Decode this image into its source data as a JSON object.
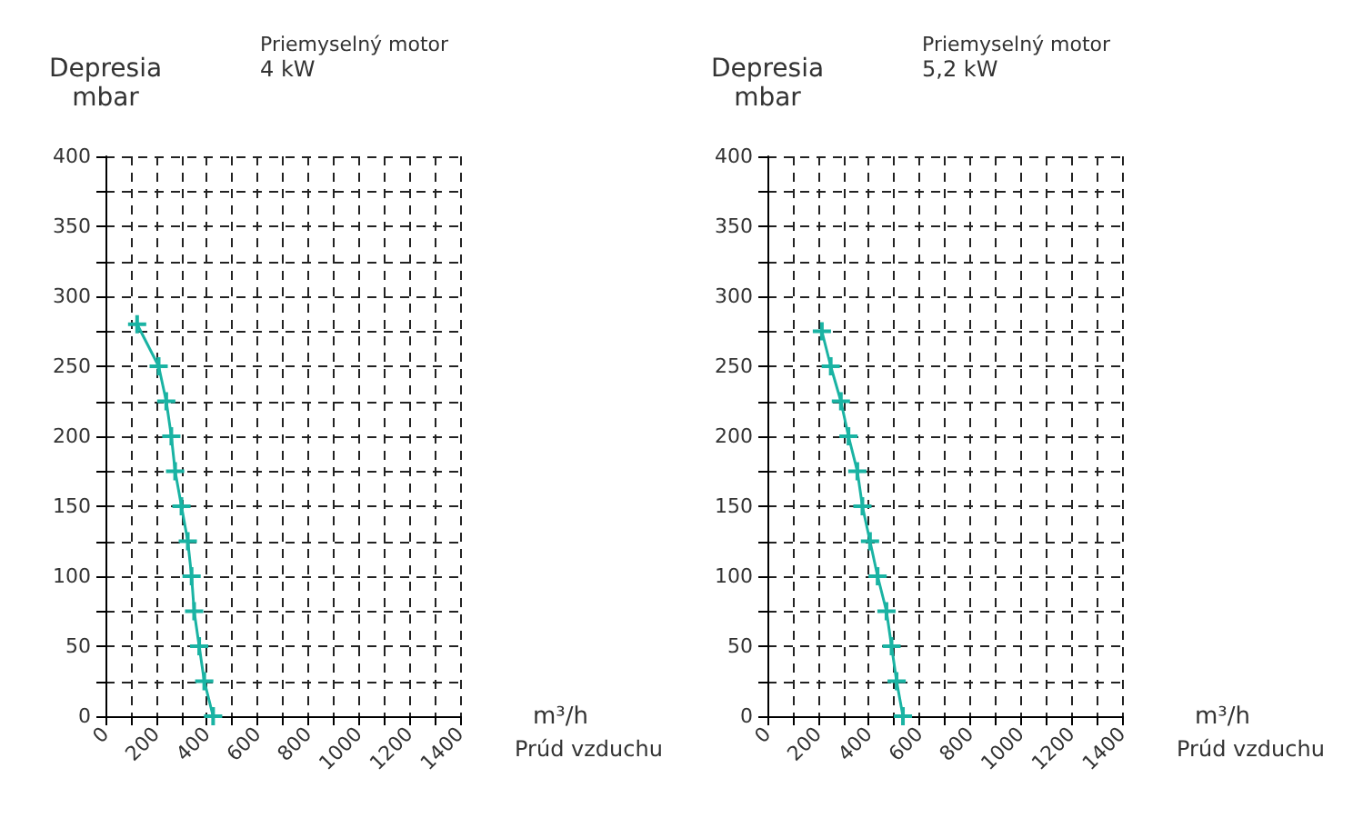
{
  "chart_data": [
    {
      "type": "line",
      "title": "Priemyselný motor",
      "subtitle": "4 kW",
      "ylabel": "Depresia\nmbar",
      "xlabel": "m³/h",
      "annotations": [
        "Prúd vzduchu"
      ],
      "marker": "cross",
      "grid": true,
      "xlim": [
        0,
        1400
      ],
      "xticks": [
        0,
        {
          "value": 100,
          "label": null
        },
        200,
        {
          "value": 300,
          "label": null
        },
        400,
        {
          "value": 500,
          "label": null
        },
        600,
        {
          "value": 700,
          "label": null
        },
        800,
        {
          "value": 900,
          "label": null
        },
        1000,
        {
          "value": 1100,
          "label": null
        },
        1200,
        {
          "value": 1300,
          "label": null
        },
        1400
      ],
      "ylim": [
        0,
        400
      ],
      "yticks": [
        0,
        {
          "value": 25,
          "label": null
        },
        50,
        {
          "value": 75,
          "label": null
        },
        100,
        {
          "value": 125,
          "label": null
        },
        150,
        {
          "value": 175,
          "label": null
        },
        200,
        {
          "value": 225,
          "label": null
        },
        250,
        {
          "value": 275,
          "label": null
        },
        300,
        {
          "value": 325,
          "label": null
        },
        350,
        {
          "value": 375,
          "label": null
        },
        400
      ],
      "series": [
        {
          "color": "#1ab3a3",
          "x": [
            125,
            210,
            240,
            260,
            275,
            300,
            325,
            340,
            350,
            370,
            390,
            425
          ],
          "values": [
            280,
            250,
            225,
            200,
            175,
            150,
            125,
            100,
            75,
            50,
            25,
            0
          ]
        }
      ]
    },
    {
      "type": "line",
      "title": "Priemyselný motor",
      "subtitle": "5,2 kW",
      "ylabel": "Depresia\nmbar",
      "xlabel": "m³/h",
      "annotations": [
        "Prúd vzduchu"
      ],
      "marker": "cross",
      "grid": true,
      "xlim": [
        0,
        1400
      ],
      "xticks": [
        0,
        {
          "value": 100,
          "label": null
        },
        200,
        {
          "value": 300,
          "label": null
        },
        400,
        {
          "value": 500,
          "label": null
        },
        600,
        {
          "value": 700,
          "label": null
        },
        800,
        {
          "value": 900,
          "label": null
        },
        1000,
        {
          "value": 1100,
          "label": null
        },
        1200,
        {
          "value": 1300,
          "label": null
        },
        1400
      ],
      "ylim": [
        0,
        400
      ],
      "yticks": [
        0,
        {
          "value": 25,
          "label": null
        },
        50,
        {
          "value": 75,
          "label": null
        },
        100,
        {
          "value": 125,
          "label": null
        },
        150,
        {
          "value": 175,
          "label": null
        },
        200,
        {
          "value": 225,
          "label": null
        },
        250,
        {
          "value": 275,
          "label": null
        },
        300,
        {
          "value": 325,
          "label": null
        },
        350,
        {
          "value": 375,
          "label": null
        },
        400
      ],
      "series": [
        {
          "color": "#1ab3a3",
          "x": [
            215,
            250,
            290,
            320,
            355,
            375,
            405,
            435,
            470,
            490,
            510,
            535
          ],
          "values": [
            275,
            250,
            225,
            200,
            175,
            150,
            125,
            100,
            75,
            50,
            25,
            0
          ]
        }
      ]
    }
  ]
}
